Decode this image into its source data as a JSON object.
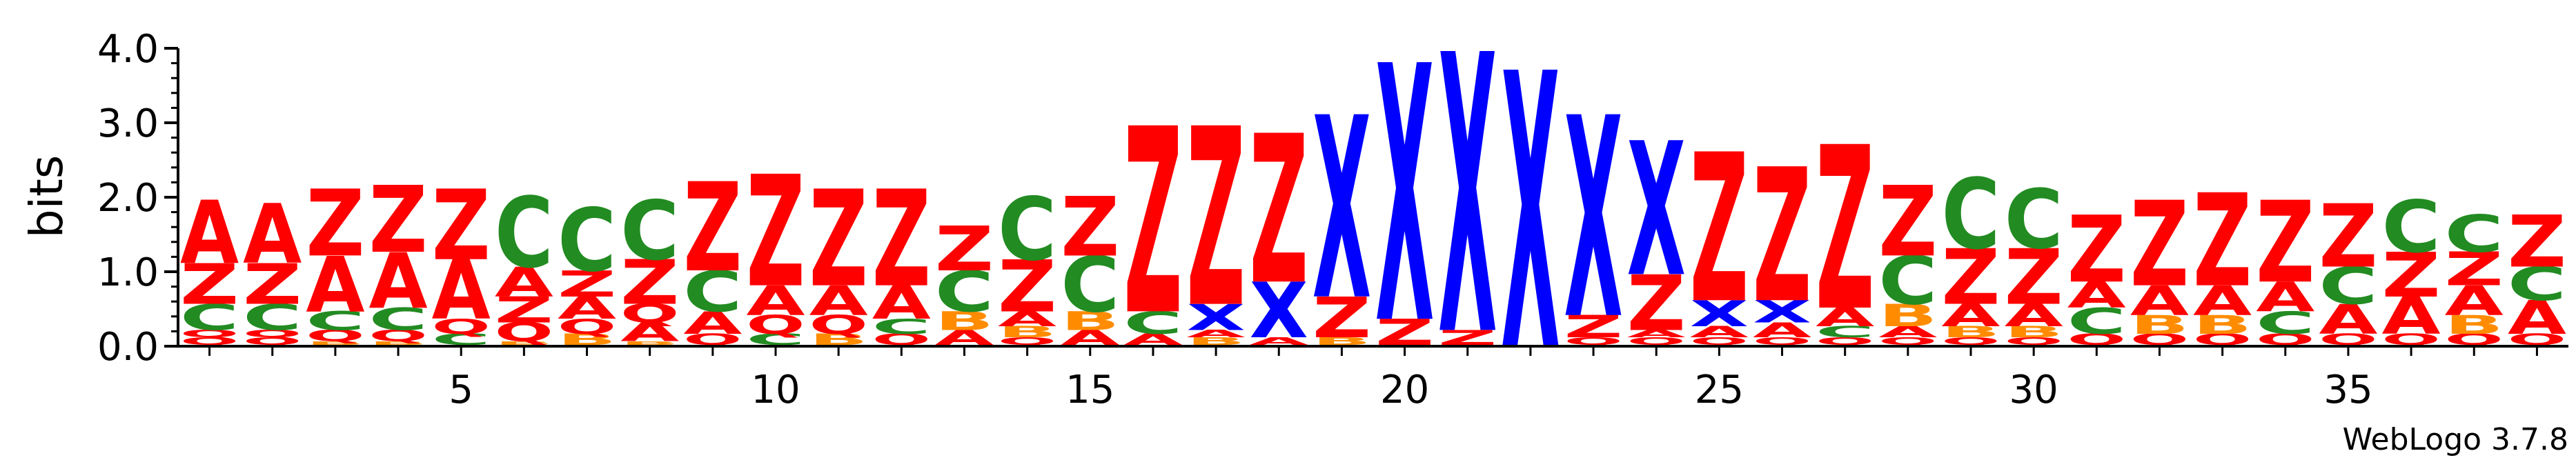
{
  "chart_data": {
    "type": "sequence-logo",
    "ylabel": "bits",
    "ylim": [
      0,
      4.0
    ],
    "y_ticks": [
      "0.0",
      "1.0",
      "2.0",
      "3.0",
      "4.0"
    ],
    "x_ticks": [
      "5",
      "10",
      "15",
      "20",
      "25",
      "30",
      "35"
    ],
    "x_tick_values": [
      5,
      10,
      15,
      20,
      25,
      30,
      35
    ],
    "positions": 38,
    "footer": "WebLogo 3.7.8",
    "colors": {
      "A": "#ff0000",
      "Z": "#ff0000",
      "Q": "#ff0000",
      "C": "#228b22",
      "B": "#ff8c00",
      "X": "#0000ff"
    },
    "columns": [
      {
        "pos": 1,
        "stack": [
          {
            "l": "Q",
            "h": 0.1
          },
          {
            "l": "Q",
            "h": 0.1
          },
          {
            "l": "C",
            "h": 0.35
          },
          {
            "l": "Z",
            "h": 0.55
          },
          {
            "l": "A",
            "h": 0.85
          }
        ]
      },
      {
        "pos": 2,
        "stack": [
          {
            "l": "Q",
            "h": 0.1
          },
          {
            "l": "Q",
            "h": 0.1
          },
          {
            "l": "C",
            "h": 0.35
          },
          {
            "l": "Z",
            "h": 0.55
          },
          {
            "l": "A",
            "h": 0.8
          }
        ]
      },
      {
        "pos": 3,
        "stack": [
          {
            "l": "B",
            "h": 0.05
          },
          {
            "l": "Q",
            "h": 0.15
          },
          {
            "l": "C",
            "h": 0.25
          },
          {
            "l": "A",
            "h": 0.75
          },
          {
            "l": "Z",
            "h": 0.9
          }
        ]
      },
      {
        "pos": 4,
        "stack": [
          {
            "l": "B",
            "h": 0.05
          },
          {
            "l": "Q",
            "h": 0.15
          },
          {
            "l": "C",
            "h": 0.3
          },
          {
            "l": "A",
            "h": 0.75
          },
          {
            "l": "Z",
            "h": 0.9
          }
        ]
      },
      {
        "pos": 5,
        "stack": [
          {
            "l": "C",
            "h": 0.15
          },
          {
            "l": "Q",
            "h": 0.2
          },
          {
            "l": "A",
            "h": 0.8
          },
          {
            "l": "Z",
            "h": 0.95
          }
        ]
      },
      {
        "pos": 6,
        "stack": [
          {
            "l": "B",
            "h": 0.05
          },
          {
            "l": "Q",
            "h": 0.25
          },
          {
            "l": "Z",
            "h": 0.35
          },
          {
            "l": "A",
            "h": 0.4
          },
          {
            "l": "C",
            "h": 0.95
          }
        ]
      },
      {
        "pos": 7,
        "stack": [
          {
            "l": "B",
            "h": 0.15
          },
          {
            "l": "Q",
            "h": 0.2
          },
          {
            "l": "A",
            "h": 0.3
          },
          {
            "l": "Z",
            "h": 0.35
          },
          {
            "l": "C",
            "h": 0.85
          }
        ]
      },
      {
        "pos": 8,
        "stack": [
          {
            "l": "B",
            "h": 0.05
          },
          {
            "l": "A",
            "h": 0.25
          },
          {
            "l": "Q",
            "h": 0.25
          },
          {
            "l": "Z",
            "h": 0.6
          },
          {
            "l": "C",
            "h": 0.8
          }
        ]
      },
      {
        "pos": 9,
        "stack": [
          {
            "l": "Q",
            "h": 0.15
          },
          {
            "l": "A",
            "h": 0.3
          },
          {
            "l": "C",
            "h": 0.55
          },
          {
            "l": "Z",
            "h": 1.2
          }
        ]
      },
      {
        "pos": 10,
        "stack": [
          {
            "l": "C",
            "h": 0.15
          },
          {
            "l": "Q",
            "h": 0.25
          },
          {
            "l": "A",
            "h": 0.4
          },
          {
            "l": "Z",
            "h": 1.5
          }
        ]
      },
      {
        "pos": 11,
        "stack": [
          {
            "l": "B",
            "h": 0.15
          },
          {
            "l": "Q",
            "h": 0.25
          },
          {
            "l": "A",
            "h": 0.4
          },
          {
            "l": "Z",
            "h": 1.3
          }
        ]
      },
      {
        "pos": 12,
        "stack": [
          {
            "l": "Q",
            "h": 0.15
          },
          {
            "l": "C",
            "h": 0.2
          },
          {
            "l": "A",
            "h": 0.45
          },
          {
            "l": "Z",
            "h": 1.3
          }
        ]
      },
      {
        "pos": 13,
        "stack": [
          {
            "l": "A",
            "h": 0.2
          },
          {
            "l": "B",
            "h": 0.25
          },
          {
            "l": "C",
            "h": 0.55
          },
          {
            "l": "Z",
            "h": 0.6
          }
        ]
      },
      {
        "pos": 14,
        "stack": [
          {
            "l": "Q",
            "h": 0.1
          },
          {
            "l": "B",
            "h": 0.15
          },
          {
            "l": "A",
            "h": 0.2
          },
          {
            "l": "Z",
            "h": 0.7
          },
          {
            "l": "C",
            "h": 0.85
          }
        ]
      },
      {
        "pos": 15,
        "stack": [
          {
            "l": "A",
            "h": 0.2
          },
          {
            "l": "B",
            "h": 0.25
          },
          {
            "l": "C",
            "h": 0.75
          },
          {
            "l": "Z",
            "h": 0.8
          }
        ]
      },
      {
        "pos": 16,
        "stack": [
          {
            "l": "A",
            "h": 0.15
          },
          {
            "l": "C",
            "h": 0.3
          },
          {
            "l": "Z",
            "h": 2.5
          }
        ]
      },
      {
        "pos": 17,
        "stack": [
          {
            "l": "B",
            "h": 0.1
          },
          {
            "l": "A",
            "h": 0.1
          },
          {
            "l": "X",
            "h": 0.35
          },
          {
            "l": "Z",
            "h": 2.4
          }
        ]
      },
      {
        "pos": 18,
        "stack": [
          {
            "l": "A",
            "h": 0.1
          },
          {
            "l": "X",
            "h": 0.75
          },
          {
            "l": "Z",
            "h": 2.0
          }
        ]
      },
      {
        "pos": 19,
        "stack": [
          {
            "l": "B",
            "h": 0.1
          },
          {
            "l": "Z",
            "h": 0.55
          },
          {
            "l": "X",
            "h": 2.45
          }
        ]
      },
      {
        "pos": 20,
        "stack": [
          {
            "l": "Z",
            "h": 0.35
          },
          {
            "l": "X",
            "h": 3.45
          }
        ]
      },
      {
        "pos": 21,
        "stack": [
          {
            "l": "Z",
            "h": 0.2
          },
          {
            "l": "X",
            "h": 3.75
          }
        ]
      },
      {
        "pos": 22,
        "stack": [
          {
            "l": "X",
            "h": 3.7
          }
        ]
      },
      {
        "pos": 23,
        "stack": [
          {
            "l": "Q",
            "h": 0.1
          },
          {
            "l": "Z",
            "h": 0.3
          },
          {
            "l": "X",
            "h": 2.7
          }
        ]
      },
      {
        "pos": 24,
        "stack": [
          {
            "l": "Q",
            "h": 0.1
          },
          {
            "l": "A",
            "h": 0.1
          },
          {
            "l": "Z",
            "h": 0.75
          },
          {
            "l": "X",
            "h": 1.8
          }
        ]
      },
      {
        "pos": 25,
        "stack": [
          {
            "l": "Q",
            "h": 0.1
          },
          {
            "l": "A",
            "h": 0.15
          },
          {
            "l": "X",
            "h": 0.35
          },
          {
            "l": "Z",
            "h": 2.0
          }
        ]
      },
      {
        "pos": 26,
        "stack": [
          {
            "l": "Q",
            "h": 0.1
          },
          {
            "l": "A",
            "h": 0.2
          },
          {
            "l": "X",
            "h": 0.3
          },
          {
            "l": "Z",
            "h": 1.8
          }
        ]
      },
      {
        "pos": 27,
        "stack": [
          {
            "l": "Q",
            "h": 0.1
          },
          {
            "l": "C",
            "h": 0.15
          },
          {
            "l": "A",
            "h": 0.25
          },
          {
            "l": "Z",
            "h": 2.2
          }
        ]
      },
      {
        "pos": 28,
        "stack": [
          {
            "l": "Q",
            "h": 0.1
          },
          {
            "l": "A",
            "h": 0.15
          },
          {
            "l": "B",
            "h": 0.3
          },
          {
            "l": "C",
            "h": 0.65
          },
          {
            "l": "Z",
            "h": 0.95
          }
        ]
      },
      {
        "pos": 29,
        "stack": [
          {
            "l": "Q",
            "h": 0.1
          },
          {
            "l": "B",
            "h": 0.15
          },
          {
            "l": "A",
            "h": 0.3
          },
          {
            "l": "Z",
            "h": 0.75
          },
          {
            "l": "C",
            "h": 0.95
          }
        ]
      },
      {
        "pos": 30,
        "stack": [
          {
            "l": "Q",
            "h": 0.1
          },
          {
            "l": "B",
            "h": 0.15
          },
          {
            "l": "A",
            "h": 0.3
          },
          {
            "l": "Z",
            "h": 0.75
          },
          {
            "l": "C",
            "h": 0.8
          }
        ]
      },
      {
        "pos": 31,
        "stack": [
          {
            "l": "Q",
            "h": 0.15
          },
          {
            "l": "C",
            "h": 0.35
          },
          {
            "l": "A",
            "h": 0.35
          },
          {
            "l": "Z",
            "h": 0.9
          }
        ]
      },
      {
        "pos": 32,
        "stack": [
          {
            "l": "Q",
            "h": 0.15
          },
          {
            "l": "B",
            "h": 0.25
          },
          {
            "l": "A",
            "h": 0.4
          },
          {
            "l": "Z",
            "h": 1.15
          }
        ]
      },
      {
        "pos": 33,
        "stack": [
          {
            "l": "Q",
            "h": 0.15
          },
          {
            "l": "B",
            "h": 0.25
          },
          {
            "l": "A",
            "h": 0.4
          },
          {
            "l": "Z",
            "h": 1.25
          }
        ]
      },
      {
        "pos": 34,
        "stack": [
          {
            "l": "Q",
            "h": 0.15
          },
          {
            "l": "C",
            "h": 0.3
          },
          {
            "l": "A",
            "h": 0.4
          },
          {
            "l": "Z",
            "h": 1.1
          }
        ]
      },
      {
        "pos": 35,
        "stack": [
          {
            "l": "Q",
            "h": 0.15
          },
          {
            "l": "A",
            "h": 0.4
          },
          {
            "l": "C",
            "h": 0.5
          },
          {
            "l": "Z",
            "h": 0.85
          }
        ]
      },
      {
        "pos": 36,
        "stack": [
          {
            "l": "Q",
            "h": 0.15
          },
          {
            "l": "A",
            "h": 0.5
          },
          {
            "l": "Z",
            "h": 0.6
          },
          {
            "l": "C",
            "h": 0.7
          }
        ]
      },
      {
        "pos": 37,
        "stack": [
          {
            "l": "Q",
            "h": 0.15
          },
          {
            "l": "B",
            "h": 0.25
          },
          {
            "l": "A",
            "h": 0.4
          },
          {
            "l": "Z",
            "h": 0.45
          },
          {
            "l": "C",
            "h": 0.5
          }
        ]
      },
      {
        "pos": 38,
        "stack": [
          {
            "l": "Q",
            "h": 0.15
          },
          {
            "l": "A",
            "h": 0.45
          },
          {
            "l": "C",
            "h": 0.45
          },
          {
            "l": "Z",
            "h": 0.7
          }
        ]
      }
    ]
  }
}
